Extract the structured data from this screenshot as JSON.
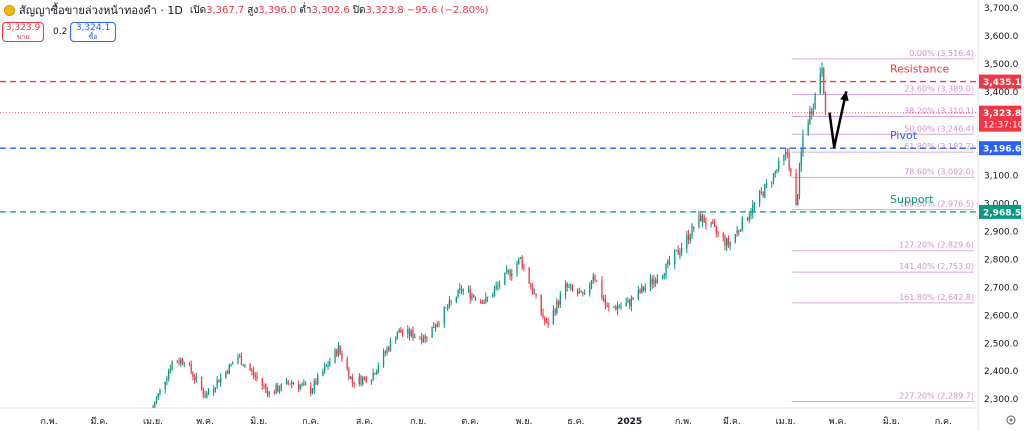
{
  "header": {
    "title": "สัญญาซื้อขายล่วงหน้าทองคำ · 1D",
    "open_label": "เปิด",
    "open": "3,367.7",
    "high_label": "สูง",
    "high": "3,396.0",
    "low_label": "ต่ำ",
    "low": "3,302.6",
    "close_label": "ปิด",
    "close": "3,323.8",
    "change": "−95.6 (−2.80%)"
  },
  "trade": {
    "sell_price": "3,323.9",
    "sell_label": "ขาย",
    "spread": "0.2",
    "buy_price": "3,324.1",
    "buy_label": "ซื้อ"
  },
  "chart_data": {
    "type": "candlestick",
    "y_axis_ticks": [
      "3,700.0",
      "3,600.0",
      "3,500.0",
      "3,400.0",
      "3,300.0",
      "3,200.0",
      "3,100.0",
      "3,000.0",
      "2,900.0",
      "2,800.0",
      "2,700.0",
      "2,600.0",
      "2,500.0",
      "2,400.0",
      "2,300.0"
    ],
    "ylim": [
      2270,
      3720
    ],
    "x_axis_ticks": [
      "ก.พ.",
      "มี.ค.",
      "เม.ย.",
      "พ.ค.",
      "มิ.ย.",
      "ก.ค.",
      "ส.ค.",
      "ก.ย.",
      "ต.ค.",
      "พ.ย.",
      "ธ.ค.",
      "2025",
      "ก.พ.",
      "มี.ค.",
      "เม.ย.",
      "พ.ค.",
      "มิ.ย.",
      "ก.ค."
    ],
    "x_tick_dates": [
      "2024-02-01",
      "2024-03-01",
      "2024-04-01",
      "2024-05-01",
      "2024-06-01",
      "2024-07-01",
      "2024-08-01",
      "2024-09-01",
      "2024-10-01",
      "2024-11-01",
      "2024-12-01",
      "2025-01-01",
      "2025-02-01",
      "2025-03-01",
      "2025-04-01",
      "2025-05-01",
      "2025-06-01",
      "2025-07-01"
    ],
    "price_path": [
      [
        "2024-04-01",
        2270
      ],
      [
        "2024-04-12",
        2430
      ],
      [
        "2024-04-19",
        2440
      ],
      [
        "2024-05-01",
        2310
      ],
      [
        "2024-05-20",
        2450
      ],
      [
        "2024-06-07",
        2320
      ],
      [
        "2024-06-20",
        2360
      ],
      [
        "2024-07-01",
        2330
      ],
      [
        "2024-07-17",
        2480
      ],
      [
        "2024-07-25",
        2360
      ],
      [
        "2024-08-05",
        2380
      ],
      [
        "2024-08-20",
        2540
      ],
      [
        "2024-09-05",
        2520
      ],
      [
        "2024-09-26",
        2690
      ],
      [
        "2024-10-10",
        2650
      ],
      [
        "2024-10-30",
        2800
      ],
      [
        "2024-11-14",
        2560
      ],
      [
        "2024-11-25",
        2700
      ],
      [
        "2024-12-06",
        2660
      ],
      [
        "2024-12-11",
        2750
      ],
      [
        "2024-12-19",
        2620
      ],
      [
        "2024-12-31",
        2640
      ],
      [
        "2025-01-24",
        2780
      ],
      [
        "2025-02-11",
        2950
      ],
      [
        "2025-02-27",
        2850
      ],
      [
        "2025-03-06",
        2920
      ],
      [
        "2025-03-20",
        3050
      ],
      [
        "2025-04-02",
        3180
      ],
      [
        "2025-04-07",
        2980
      ],
      [
        "2025-04-11",
        3240
      ],
      [
        "2025-04-17",
        3360
      ],
      [
        "2025-04-22",
        3500
      ],
      [
        "2025-04-24",
        3330
      ]
    ],
    "last_close": 3323.8,
    "levels": [
      {
        "name": "Resistance",
        "value": 3435.1,
        "price_label": "3,435.1",
        "color": "#f23645"
      },
      {
        "name": "Pivot",
        "value": 3196.6,
        "price_label": "3,196.6",
        "color": "#2962ff"
      },
      {
        "name": "Support",
        "value": 2968.5,
        "price_label": "2,968.5",
        "color": "#089981"
      }
    ],
    "last_price": {
      "price_label": "3,323.8",
      "countdown": "12:37:10",
      "color": "#f23645"
    },
    "fib_levels": [
      {
        "label": "0.00% (3,516.4)",
        "value": 3516.4
      },
      {
        "label": "23.60% (3,389.0)",
        "value": 3389.0
      },
      {
        "label": "38.20% (3,310.1)",
        "value": 3310.1
      },
      {
        "label": "50.00% (3,246.4)",
        "value": 3246.4
      },
      {
        "label": "61.80% (3,182.7)",
        "value": 3182.7
      },
      {
        "label": "78.60% (3,092.0)",
        "value": 3092.0
      },
      {
        "label": "100.00% (2,976.5)",
        "value": 2976.5
      },
      {
        "label": "127.20% (2,829.6)",
        "value": 2829.6
      },
      {
        "label": "141.40% (2,753.0)",
        "value": 2753.0
      },
      {
        "label": "161.80% (2,642.8)",
        "value": 2642.8
      },
      {
        "label": "227.20% (2,289.7)",
        "value": 2289.7
      }
    ],
    "fib_color": "#d48fd4",
    "arrow_path": [
      [
        "2025-04-29",
        3200
      ],
      [
        "2025-05-06",
        3400
      ]
    ],
    "colors": {
      "up": "#089981",
      "down": "#f23645",
      "axis_text": "#131722"
    }
  }
}
